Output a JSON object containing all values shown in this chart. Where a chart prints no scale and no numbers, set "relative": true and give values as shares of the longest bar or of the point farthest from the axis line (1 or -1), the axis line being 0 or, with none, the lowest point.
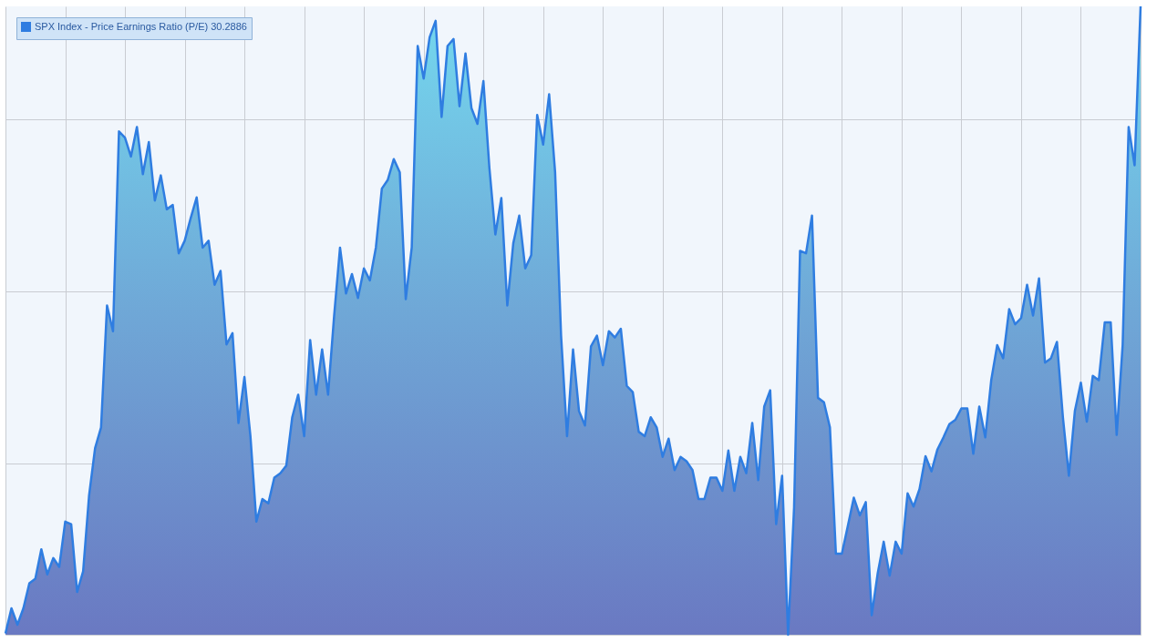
{
  "chart_data": {
    "type": "area",
    "relative": true,
    "grid": true,
    "legend": "top left",
    "tick_labels": false,
    "categories": [
      null,
      null,
      null,
      null,
      null,
      null,
      null,
      null,
      null,
      null,
      null,
      null,
      null,
      null,
      null,
      null,
      null,
      null,
      null,
      null,
      null,
      null,
      null,
      null,
      null,
      null,
      null,
      null,
      null,
      null,
      null,
      null,
      null,
      null,
      null,
      null,
      null,
      null,
      null,
      null,
      null,
      null,
      null,
      null,
      null,
      null,
      null,
      null,
      null,
      null,
      null,
      null,
      null,
      null,
      null,
      null,
      null,
      null,
      null,
      null,
      null,
      null,
      null,
      null,
      null,
      null,
      null,
      null,
      null,
      null,
      null,
      null,
      null,
      null,
      null,
      null,
      null,
      null,
      null,
      null,
      null,
      null,
      null,
      null,
      null,
      null,
      null,
      null,
      null,
      null,
      null,
      null,
      null,
      null,
      null,
      null,
      null,
      null,
      null,
      null,
      null,
      null,
      null,
      null,
      null,
      null,
      null,
      null,
      null,
      null,
      null,
      null,
      null,
      null,
      null,
      null,
      null,
      null,
      null,
      null,
      null,
      null,
      null,
      null,
      null,
      null,
      null,
      null,
      null,
      null,
      null,
      null,
      null,
      null,
      null,
      null,
      null,
      null,
      null,
      null,
      null,
      null,
      null,
      null,
      null,
      null,
      null,
      null,
      null,
      null,
      null,
      null,
      null,
      null,
      null,
      null,
      null,
      null,
      null,
      null,
      null,
      null,
      null,
      null,
      null,
      null,
      null,
      null,
      null,
      null,
      null,
      null,
      null,
      null,
      null,
      null,
      null,
      null,
      null,
      null,
      null,
      null,
      null,
      null,
      null,
      null,
      null,
      null,
      null,
      null,
      null
    ],
    "series": [
      {
        "name": "SPX Index - Price Earnings Ratio (P/E) 30.2886",
        "color": "#2f7de1",
        "values": [
          0.002,
          0.042,
          0.016,
          0.042,
          0.082,
          0.089,
          0.136,
          0.096,
          0.122,
          0.108,
          0.18,
          0.176,
          0.068,
          0.101,
          0.222,
          0.297,
          0.33,
          0.524,
          0.483,
          0.801,
          0.791,
          0.761,
          0.808,
          0.733,
          0.784,
          0.691,
          0.731,
          0.677,
          0.684,
          0.607,
          0.627,
          0.663,
          0.696,
          0.616,
          0.627,
          0.557,
          0.579,
          0.462,
          0.48,
          0.337,
          0.41,
          0.316,
          0.18,
          0.216,
          0.209,
          0.25,
          0.257,
          0.269,
          0.346,
          0.382,
          0.316,
          0.469,
          0.382,
          0.454,
          0.382,
          0.506,
          0.616,
          0.543,
          0.574,
          0.536,
          0.583,
          0.564,
          0.616,
          0.71,
          0.724,
          0.757,
          0.736,
          0.534,
          0.616,
          0.937,
          0.885,
          0.951,
          0.977,
          0.824,
          0.937,
          0.948,
          0.841,
          0.925,
          0.838,
          0.813,
          0.881,
          0.743,
          0.637,
          0.695,
          0.524,
          0.623,
          0.667,
          0.583,
          0.604,
          0.827,
          0.78,
          0.86,
          0.736,
          0.476,
          0.316,
          0.454,
          0.356,
          0.333,
          0.459,
          0.476,
          0.429,
          0.483,
          0.473,
          0.487,
          0.396,
          0.386,
          0.323,
          0.316,
          0.346,
          0.33,
          0.283,
          0.312,
          0.262,
          0.283,
          0.276,
          0.262,
          0.216,
          0.216,
          0.25,
          0.25,
          0.229,
          0.293,
          0.229,
          0.283,
          0.257,
          0.337,
          0.246,
          0.363,
          0.389,
          0.176,
          0.253,
          0,
          0.202,
          0.611,
          0.607,
          0.667,
          0.377,
          0.37,
          0.33,
          0.129,
          0.129,
          0.173,
          0.218,
          0.19,
          0.211,
          0.031,
          0.098,
          0.148,
          0.094,
          0.148,
          0.129,
          0.225,
          0.204,
          0.232,
          0.284,
          0.26,
          0.295,
          0.314,
          0.335,
          0.342,
          0.36,
          0.36,
          0.288,
          0.363,
          0.314,
          0.405,
          0.461,
          0.44,
          0.518,
          0.494,
          0.504,
          0.557,
          0.508,
          0.567,
          0.433,
          0.44,
          0.466,
          0.346,
          0.253,
          0.356,
          0.401,
          0.339,
          0.412,
          0.405,
          0.497,
          0.497,
          0.318,
          0.461,
          0.808,
          0.747,
          1
        ]
      }
    ]
  }
}
